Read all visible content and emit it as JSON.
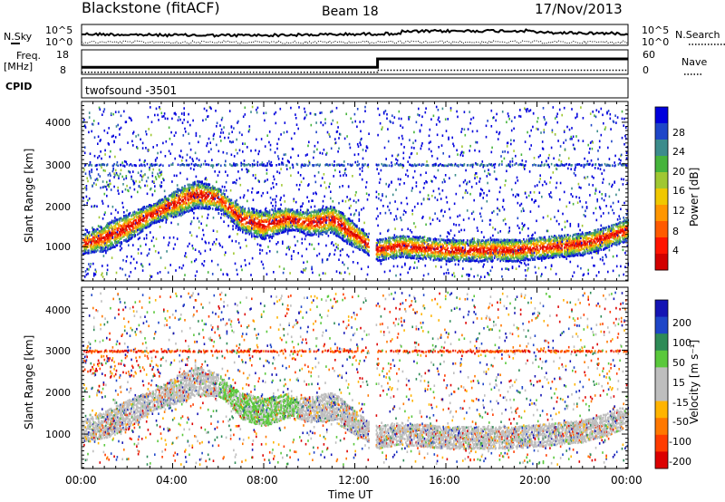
{
  "header": {
    "station": "Blackstone (fitACF)",
    "beam": "Beam 18",
    "date": "17/Nov/2013"
  },
  "noise_panel": {
    "left_label": "N.Sky",
    "right_label": "N.Search",
    "tick_top": "10^5",
    "tick_bottom": "10^0"
  },
  "freq_panel": {
    "left_label_1": "Freq.",
    "left_label_2": "[MHz]",
    "right_label": "Nave",
    "left_ticks": [
      "18",
      "8"
    ],
    "right_ticks": [
      "60",
      "0"
    ],
    "freq_mhz": [
      {
        "t": 0.0,
        "v": 10.5
      },
      {
        "t": 13.0,
        "v": 10.5
      },
      {
        "t": 13.0,
        "v": 14.5
      },
      {
        "t": 24.0,
        "v": 14.5
      }
    ],
    "nave": [
      {
        "t": 0.0,
        "v": 5
      },
      {
        "t": 13.0,
        "v": 5
      },
      {
        "t": 13.0,
        "v": 10
      },
      {
        "t": 24.0,
        "v": 10
      }
    ]
  },
  "cpid_panel": {
    "label": "CPID",
    "value": "twofsound -3501"
  },
  "x_axis": {
    "label": "Time UT",
    "ticks": [
      "00:00",
      "04:00",
      "08:00",
      "12:00",
      "16:00",
      "20:00",
      "00:00"
    ]
  },
  "power_panel": {
    "ylabel": "Slant Range [km]",
    "yticks": [
      "4000",
      "3000",
      "2000",
      "1000"
    ],
    "colorbar_label": "Power [dB]",
    "colorbar_ticks": [
      "28",
      "24",
      "20",
      "16",
      "12",
      "8",
      "4"
    ],
    "colors": [
      "#0000dd",
      "#1e46c8",
      "#3c8c8c",
      "#46b43c",
      "#a0c832",
      "#f0c800",
      "#ff9600",
      "#ff5a00",
      "#ff1400",
      "#d20000"
    ]
  },
  "velocity_panel": {
    "ylabel": "Slant Range [km]",
    "yticks": [
      "4000",
      "3000",
      "2000",
      "1000"
    ],
    "colorbar_label": "Velocity [m s⁻¹]",
    "colorbar_ticks": [
      "200",
      "100",
      "50",
      "15",
      "-15",
      "-50",
      "-100",
      "-200"
    ],
    "colors": [
      "#1414b4",
      "#1e46c8",
      "#2e8b57",
      "#5ac83c",
      "#bebebe",
      "#bebebe",
      "#ffb400",
      "#ff7800",
      "#ff3c00",
      "#dc0000"
    ]
  },
  "chart_data": {
    "type": "heatmap",
    "x_range_hours": [
      0,
      24
    ],
    "y_range_km": [
      180,
      4500
    ],
    "ground_scatter_band_km": [
      {
        "t": 0,
        "center": 1100
      },
      {
        "t": 1,
        "center": 1250
      },
      {
        "t": 2,
        "center": 1500
      },
      {
        "t": 3,
        "center": 1800
      },
      {
        "t": 4,
        "center": 2050
      },
      {
        "t": 5,
        "center": 2300
      },
      {
        "t": 6,
        "center": 2200
      },
      {
        "t": 7,
        "center": 1700
      },
      {
        "t": 8,
        "center": 1550
      },
      {
        "t": 9,
        "center": 1700
      },
      {
        "t": 10,
        "center": 1600
      },
      {
        "t": 11,
        "center": 1700
      },
      {
        "t": 12,
        "center": 1300
      },
      {
        "t": 13,
        "center": 950
      },
      {
        "t": 14,
        "center": 1050
      },
      {
        "t": 15,
        "center": 1000
      },
      {
        "t": 16,
        "center": 950
      },
      {
        "t": 17,
        "center": 950
      },
      {
        "t": 18,
        "center": 950
      },
      {
        "t": 19,
        "center": 950
      },
      {
        "t": 20,
        "center": 1000
      },
      {
        "t": 21,
        "center": 1050
      },
      {
        "t": 22,
        "center": 1100
      },
      {
        "t": 23,
        "center": 1250
      },
      {
        "t": 24,
        "center": 1450
      }
    ],
    "horizontal_feature_km": 3000
  }
}
